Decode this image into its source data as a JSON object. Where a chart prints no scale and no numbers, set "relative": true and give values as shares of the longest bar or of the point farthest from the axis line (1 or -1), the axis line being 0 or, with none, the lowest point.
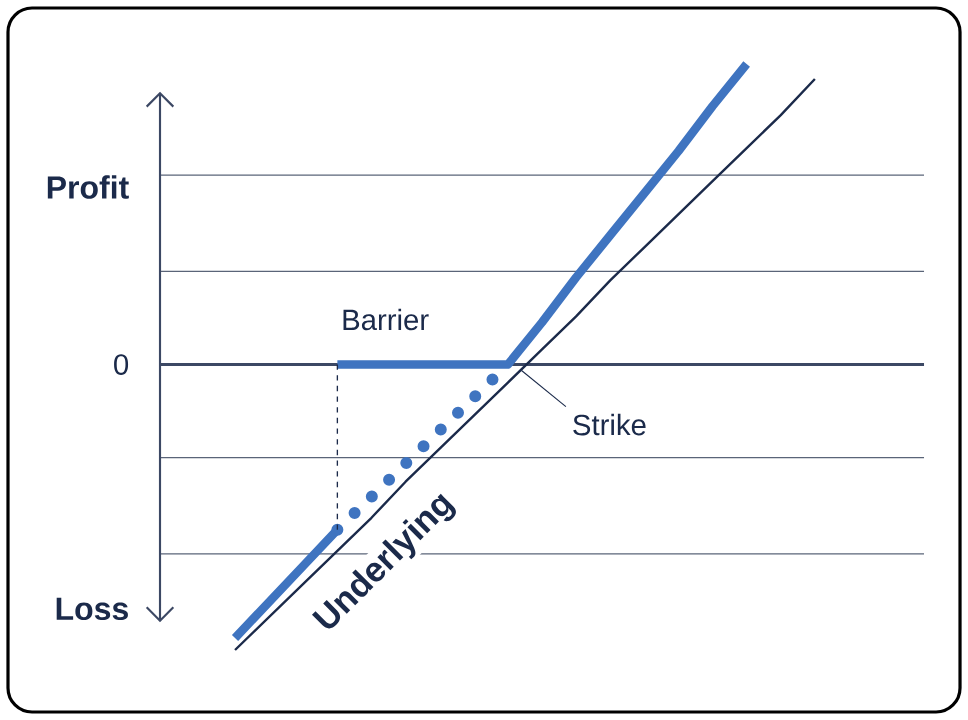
{
  "chart_data": {
    "type": "line",
    "relative": true,
    "legend": false,
    "marker": "none",
    "categories": [
      null,
      null,
      null,
      null,
      null,
      null,
      null,
      null,
      null,
      null,
      null,
      null,
      null,
      null,
      null,
      null,
      null,
      null
    ],
    "ref_lines": [
      {
        "axis": "y",
        "value": -0.63,
        "color": "#5a6478"
      },
      {
        "axis": "y",
        "value": -0.31,
        "color": "#5a6478"
      },
      {
        "axis": "y",
        "value": 0,
        "label": "0",
        "color": "#3c4864"
      },
      {
        "axis": "y",
        "value": 0.31,
        "color": "#5a6478"
      },
      {
        "axis": "y",
        "value": 0.63,
        "color": "#5a6478"
      }
    ],
    "series": [
      {
        "name": "Underlying",
        "color": "#1b2a4a",
        "line_style": "solid",
        "values": [
          -0.95,
          -0.84,
          -0.73,
          -0.62,
          -0.51,
          -0.39,
          -0.28,
          -0.17,
          -0.06,
          0.05,
          0.16,
          0.28,
          0.39,
          0.5,
          0.61,
          0.72,
          0.83,
          0.95
        ]
      },
      {
        "color": "#3f74c0",
        "line_style": "solid",
        "values": [
          -0.91,
          -0.79,
          -0.67,
          -0.55,
          null,
          null,
          null,
          null,
          null,
          null,
          null,
          null,
          null,
          null,
          null,
          null,
          null,
          null
        ]
      },
      {
        "color": "#3f74c0",
        "line_style": "solid",
        "values": [
          null,
          null,
          null,
          0,
          0,
          0,
          0,
          0,
          0,
          0.14,
          0.29,
          0.43,
          0.57,
          0.71,
          0.86,
          1.0,
          null,
          null
        ]
      },
      {
        "color": "#3f74c0",
        "line_style": "dotted",
        "values": [
          null,
          null,
          null,
          -0.55,
          -0.44,
          -0.33,
          -0.22,
          -0.11,
          0,
          null,
          null,
          null,
          null,
          null,
          null,
          null,
          null,
          null
        ]
      }
    ],
    "annotations": [
      "Profit",
      "Loss",
      "Barrier",
      "Strike"
    ]
  }
}
